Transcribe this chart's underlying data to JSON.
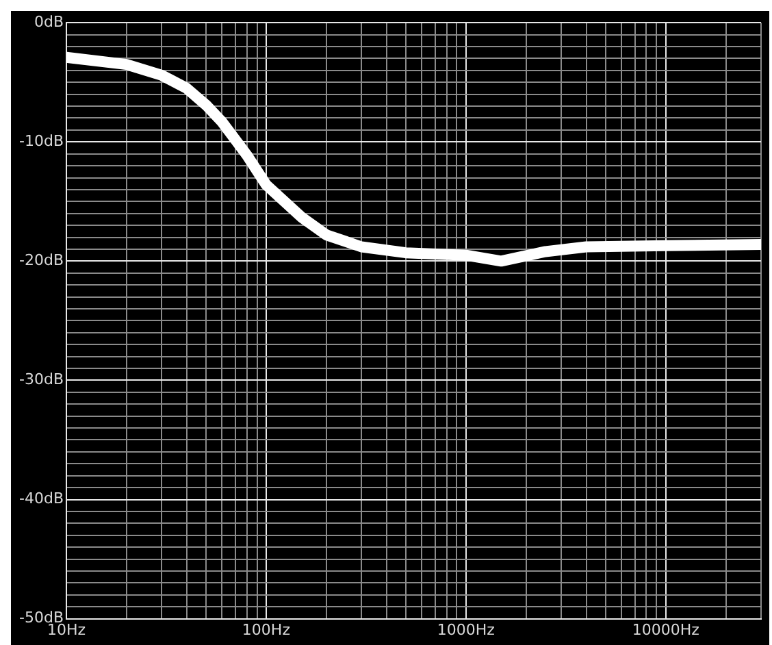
{
  "chart_data": {
    "type": "line",
    "log": "x",
    "grid": true,
    "marker": "none",
    "line_style": "solid",
    "x": [
      10,
      20,
      30,
      40,
      50,
      60,
      70,
      80,
      100,
      150,
      200,
      300,
      500,
      1000,
      1500,
      2500,
      4000,
      10000,
      30000
    ],
    "series": [
      {
        "color": "#ffffff",
        "values": [
          -2.9,
          -3.5,
          -4.4,
          -5.5,
          -6.9,
          -8.3,
          -9.8,
          -11.1,
          -13.6,
          -16.3,
          -17.8,
          -18.8,
          -19.3,
          -19.5,
          -20.0,
          -19.2,
          -18.8,
          -18.7,
          -18.6
        ]
      }
    ],
    "xlim": [
      10,
      30000
    ],
    "ylim": [
      -50,
      0
    ],
    "xticks": [
      {
        "value": 10,
        "label": "10Hz"
      },
      {
        "value": 20,
        "label": null
      },
      {
        "value": 30,
        "label": null
      },
      {
        "value": 40,
        "label": null
      },
      {
        "value": 50,
        "label": null
      },
      {
        "value": 60,
        "label": null
      },
      {
        "value": 70,
        "label": null
      },
      {
        "value": 80,
        "label": null
      },
      {
        "value": 90,
        "label": null
      },
      {
        "value": 100,
        "label": "100Hz"
      },
      {
        "value": 200,
        "label": null
      },
      {
        "value": 300,
        "label": null
      },
      {
        "value": 400,
        "label": null
      },
      {
        "value": 500,
        "label": null
      },
      {
        "value": 600,
        "label": null
      },
      {
        "value": 700,
        "label": null
      },
      {
        "value": 800,
        "label": null
      },
      {
        "value": 900,
        "label": null
      },
      {
        "value": 1000,
        "label": "1000Hz"
      },
      {
        "value": 2000,
        "label": null
      },
      {
        "value": 3000,
        "label": null
      },
      {
        "value": 4000,
        "label": null
      },
      {
        "value": 5000,
        "label": null
      },
      {
        "value": 6000,
        "label": null
      },
      {
        "value": 7000,
        "label": null
      },
      {
        "value": 8000,
        "label": null
      },
      {
        "value": 9000,
        "label": null
      },
      {
        "value": 10000,
        "label": "10000Hz"
      },
      {
        "value": 20000,
        "label": null
      },
      {
        "value": 30000,
        "label": null
      }
    ],
    "yticks": [
      {
        "value": -50,
        "label": "-50dB"
      },
      {
        "value": -49,
        "label": null
      },
      {
        "value": -48,
        "label": null
      },
      {
        "value": -47,
        "label": null
      },
      {
        "value": -46,
        "label": null
      },
      {
        "value": -45,
        "label": null
      },
      {
        "value": -44,
        "label": null
      },
      {
        "value": -43,
        "label": null
      },
      {
        "value": -42,
        "label": null
      },
      {
        "value": -41,
        "label": null
      },
      {
        "value": -40,
        "label": "-40dB"
      },
      {
        "value": -39,
        "label": null
      },
      {
        "value": -38,
        "label": null
      },
      {
        "value": -37,
        "label": null
      },
      {
        "value": -36,
        "label": null
      },
      {
        "value": -35,
        "label": null
      },
      {
        "value": -34,
        "label": null
      },
      {
        "value": -33,
        "label": null
      },
      {
        "value": -32,
        "label": null
      },
      {
        "value": -31,
        "label": null
      },
      {
        "value": -30,
        "label": "-30dB"
      },
      {
        "value": -29,
        "label": null
      },
      {
        "value": -28,
        "label": null
      },
      {
        "value": -27,
        "label": null
      },
      {
        "value": -26,
        "label": null
      },
      {
        "value": -25,
        "label": null
      },
      {
        "value": -24,
        "label": null
      },
      {
        "value": -23,
        "label": null
      },
      {
        "value": -22,
        "label": null
      },
      {
        "value": -21,
        "label": null
      },
      {
        "value": -20,
        "label": "-20dB"
      },
      {
        "value": -19,
        "label": null
      },
      {
        "value": -18,
        "label": null
      },
      {
        "value": -17,
        "label": null
      },
      {
        "value": -16,
        "label": null
      },
      {
        "value": -15,
        "label": null
      },
      {
        "value": -14,
        "label": null
      },
      {
        "value": -13,
        "label": null
      },
      {
        "value": -12,
        "label": null
      },
      {
        "value": -11,
        "label": null
      },
      {
        "value": -10,
        "label": "-10dB"
      },
      {
        "value": -9,
        "label": null
      },
      {
        "value": -8,
        "label": null
      },
      {
        "value": -7,
        "label": null
      },
      {
        "value": -6,
        "label": null
      },
      {
        "value": -5,
        "label": null
      },
      {
        "value": -4,
        "label": null
      },
      {
        "value": -3,
        "label": null
      },
      {
        "value": -2,
        "label": null
      },
      {
        "value": -1,
        "label": null
      },
      {
        "value": 0,
        "label": "0dB"
      }
    ]
  }
}
